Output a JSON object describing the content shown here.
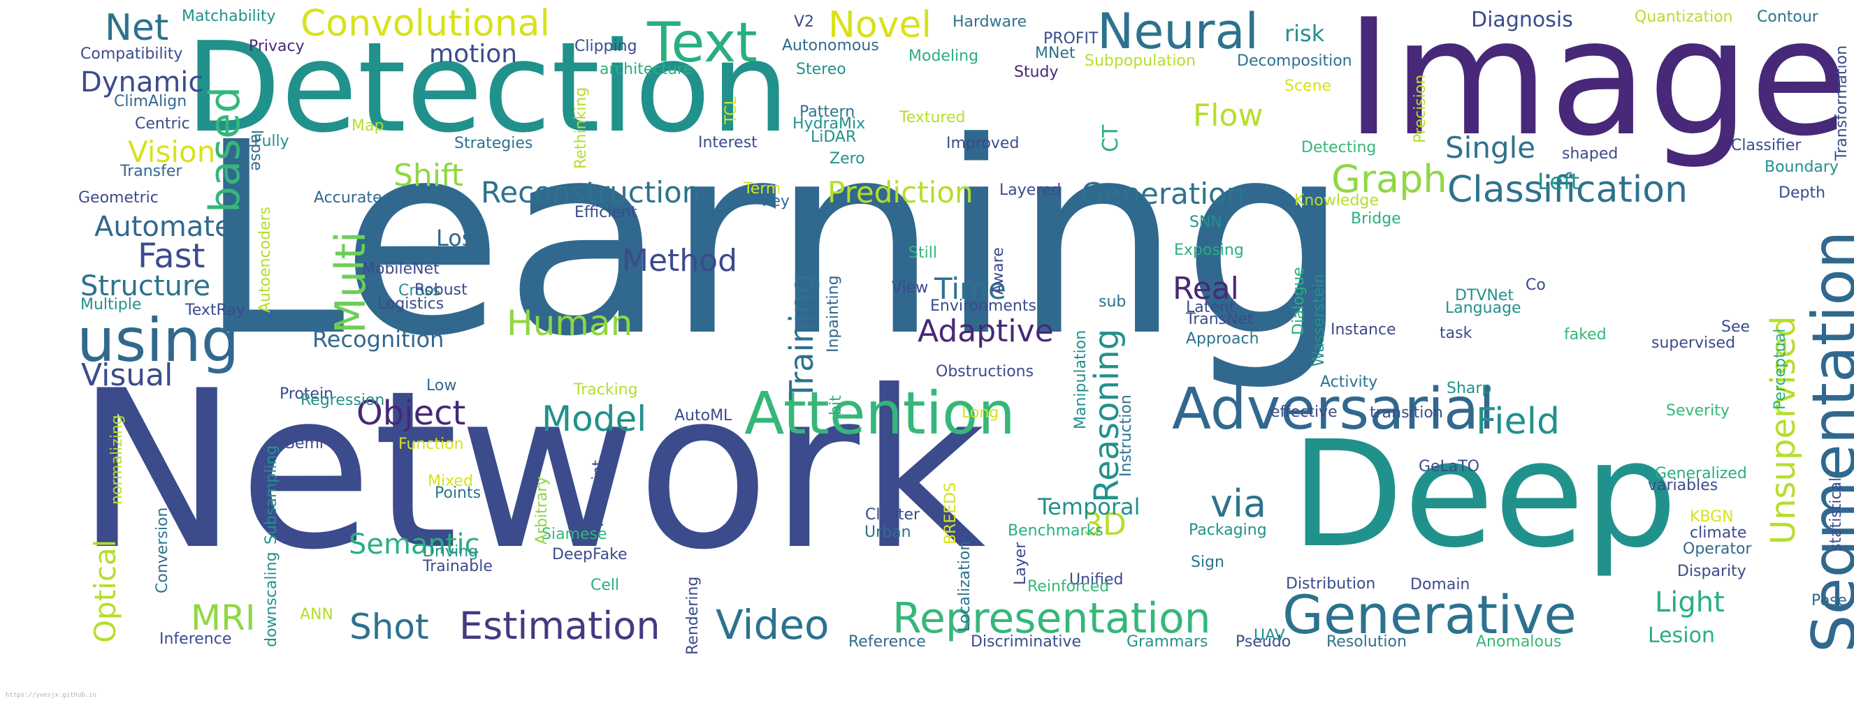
{
  "footer_url": "https://yvesjx.github.io",
  "palette": {
    "dark_purple": "#440154",
    "indigo": "#3b4b8c",
    "blue": "#31688e",
    "teal": "#21918c",
    "green": "#35b779",
    "lime": "#90d743",
    "yellow": "#d8e219",
    "gray_footer": "#b0b0b0"
  },
  "words": [
    {
      "text": "Learning",
      "color": "#31688e"
    },
    {
      "text": "Network",
      "color": "#3b4b8c"
    },
    {
      "text": "Detection",
      "color": "#21918c"
    },
    {
      "text": "Image",
      "color": "#482878"
    },
    {
      "text": "Deep",
      "color": "#21918c"
    },
    {
      "text": "Segmentation",
      "color": "#31688e"
    },
    {
      "text": "Adversarial",
      "color": "#31688e"
    },
    {
      "text": "Generative",
      "color": "#2c728e"
    },
    {
      "text": "Attention",
      "color": "#35b779"
    },
    {
      "text": "Text",
      "color": "#29af7f"
    },
    {
      "text": "Neural",
      "color": "#2c728e"
    },
    {
      "text": "Convolutional",
      "color": "#d8e219"
    },
    {
      "text": "using",
      "color": "#31688e"
    },
    {
      "text": "based",
      "color": "#35b779"
    },
    {
      "text": "Representation",
      "color": "#35b779"
    },
    {
      "text": "Classification",
      "color": "#2c728e"
    },
    {
      "text": "Multi",
      "color": "#6ece58"
    },
    {
      "text": "Video",
      "color": "#2c728e"
    },
    {
      "text": "Estimation",
      "color": "#443983"
    },
    {
      "text": "Unsupervised",
      "color": "#b5de2b"
    },
    {
      "text": "Reasoning",
      "color": "#21918c"
    },
    {
      "text": "Training",
      "color": "#2c728e"
    },
    {
      "text": "Net",
      "color": "#2c728e"
    },
    {
      "text": "Novel",
      "color": "#d8e219"
    },
    {
      "text": "Flow",
      "color": "#b5de2b"
    },
    {
      "text": "Graph",
      "color": "#90d743"
    },
    {
      "text": "Field",
      "color": "#21918c"
    },
    {
      "text": "Single",
      "color": "#2c728e"
    },
    {
      "text": "Generation",
      "color": "#2c728e"
    },
    {
      "text": "Prediction",
      "color": "#b5de2b"
    },
    {
      "text": "Reconstruction",
      "color": "#2c728e"
    },
    {
      "text": "Model",
      "color": "#21918c"
    },
    {
      "text": "Object",
      "color": "#482878"
    },
    {
      "text": "Human",
      "color": "#90d743"
    },
    {
      "text": "Adaptive",
      "color": "#482878"
    },
    {
      "text": "Method",
      "color": "#3b4b8c"
    },
    {
      "text": "Real",
      "color": "#482878"
    },
    {
      "text": "Time",
      "color": "#2c728e"
    },
    {
      "text": "Shift",
      "color": "#90d743"
    },
    {
      "text": "Semantic",
      "color": "#29af7f"
    },
    {
      "text": "Shot",
      "color": "#2c728e"
    },
    {
      "text": "MRI",
      "color": "#90d743"
    },
    {
      "text": "Optical",
      "color": "#b5de2b"
    },
    {
      "text": "Visual",
      "color": "#3b4b8c"
    },
    {
      "text": "Structure",
      "color": "#2c728e"
    },
    {
      "text": "Fast",
      "color": "#3b4b8c"
    },
    {
      "text": "Automated",
      "color": "#31688e"
    },
    {
      "text": "Vision",
      "color": "#d8e219"
    },
    {
      "text": "Dynamic",
      "color": "#3b4b8c"
    },
    {
      "text": "motion",
      "color": "#3b4b8c"
    },
    {
      "text": "Diagnosis",
      "color": "#3b4b8c"
    },
    {
      "text": "via",
      "color": "#2c728e"
    },
    {
      "text": "3D",
      "color": "#b5de2b"
    },
    {
      "text": "Temporal",
      "color": "#21918c"
    },
    {
      "text": "Light",
      "color": "#29af7f"
    },
    {
      "text": "Lesion",
      "color": "#29af7f"
    },
    {
      "text": "Left",
      "color": "#21918c"
    },
    {
      "text": "Loss",
      "color": "#31688e"
    },
    {
      "text": "Recognition",
      "color": "#31688e"
    },
    {
      "text": "risk",
      "color": "#21918c"
    },
    {
      "text": "Matchability",
      "color": "#21918c"
    },
    {
      "text": "Compatibility",
      "color": "#3b4b8c"
    },
    {
      "text": "Privacy",
      "color": "#482878"
    },
    {
      "text": "ClimAlign",
      "color": "#31688e"
    },
    {
      "text": "Centric",
      "color": "#3b4b8c"
    },
    {
      "text": "Fully",
      "color": "#21918c"
    },
    {
      "text": "Transfer",
      "color": "#31688e"
    },
    {
      "text": "Geometric",
      "color": "#3b4b8c"
    },
    {
      "text": "Accurate",
      "color": "#31688e"
    },
    {
      "text": "Map",
      "color": "#b5de2b"
    },
    {
      "text": "Strategies",
      "color": "#2c728e"
    },
    {
      "text": "lapse",
      "color": "#31688e"
    },
    {
      "text": "Rethinking",
      "color": "#b5de2b"
    },
    {
      "text": "TCL",
      "color": "#d8e219"
    },
    {
      "text": "architecture",
      "color": "#29af7f"
    },
    {
      "text": "Clipping",
      "color": "#3b4b8c"
    },
    {
      "text": "V2",
      "color": "#3b4b8c"
    },
    {
      "text": "Autonomous",
      "color": "#31688e"
    },
    {
      "text": "Stereo",
      "color": "#21918c"
    },
    {
      "text": "Pattern",
      "color": "#2c728e"
    },
    {
      "text": "HydraMix",
      "color": "#21918c"
    },
    {
      "text": "LiDAR",
      "color": "#21918c"
    },
    {
      "text": "Zero",
      "color": "#21918c"
    },
    {
      "text": "Interest",
      "color": "#3b4b8c"
    },
    {
      "text": "Efficient",
      "color": "#3b4b8c"
    },
    {
      "text": "Term",
      "color": "#d8e219"
    },
    {
      "text": "Key",
      "color": "#31688e"
    },
    {
      "text": "Hardware",
      "color": "#2c728e"
    },
    {
      "text": "Modeling",
      "color": "#29af7f"
    },
    {
      "text": "PROFIT",
      "color": "#3b4b8c"
    },
    {
      "text": "MNet",
      "color": "#2c728e"
    },
    {
      "text": "Study",
      "color": "#482878"
    },
    {
      "text": "Subpopulation",
      "color": "#b5de2b"
    },
    {
      "text": "Decomposition",
      "color": "#2c728e"
    },
    {
      "text": "Scene",
      "color": "#d8e219"
    },
    {
      "text": "Textured",
      "color": "#b5de2b"
    },
    {
      "text": "Improved",
      "color": "#3b4b8c"
    },
    {
      "text": "CT",
      "color": "#29af7f"
    },
    {
      "text": "Layered",
      "color": "#3b4b8c"
    },
    {
      "text": "Detecting",
      "color": "#35b779"
    },
    {
      "text": "Knowledge",
      "color": "#b5de2b"
    },
    {
      "text": "Bridge",
      "color": "#29af7f"
    },
    {
      "text": "Precision",
      "color": "#b5de2b"
    },
    {
      "text": "shaped",
      "color": "#3b4b8c"
    },
    {
      "text": "Quantization",
      "color": "#b5de2b"
    },
    {
      "text": "Contour",
      "color": "#2c728e"
    },
    {
      "text": "Transformation",
      "color": "#3b4b8c"
    },
    {
      "text": "Classifier",
      "color": "#3b4b8c"
    },
    {
      "text": "Boundary",
      "color": "#21918c"
    },
    {
      "text": "Depth",
      "color": "#3b4b8c"
    },
    {
      "text": "Autoencoders",
      "color": "#b5de2b"
    },
    {
      "text": "MobileNet",
      "color": "#3b4b8c"
    },
    {
      "text": "Cross",
      "color": "#21918c"
    },
    {
      "text": "Robust",
      "color": "#3b4b8c"
    },
    {
      "text": "Logistics",
      "color": "#3b4b8c"
    },
    {
      "text": "Low",
      "color": "#31688e"
    },
    {
      "text": "Multiple",
      "color": "#21918c"
    },
    {
      "text": "TextRay",
      "color": "#3b4b8c"
    },
    {
      "text": "Still",
      "color": "#35b779"
    },
    {
      "text": "Aware",
      "color": "#3b4b8c"
    },
    {
      "text": "View",
      "color": "#3b4b8c"
    },
    {
      "text": "Environments",
      "color": "#3b4b8c"
    },
    {
      "text": "Inpainting",
      "color": "#31688e"
    },
    {
      "text": "bit",
      "color": "#29af7f"
    },
    {
      "text": "Obstructions",
      "color": "#3b4b8c"
    },
    {
      "text": "SNN",
      "color": "#21918c"
    },
    {
      "text": "Exposing",
      "color": "#29af7f"
    },
    {
      "text": "sub",
      "color": "#2c728e"
    },
    {
      "text": "Latent",
      "color": "#3b4b8c"
    },
    {
      "text": "TransNet",
      "color": "#3b4b8c"
    },
    {
      "text": "Approach",
      "color": "#2c728e"
    },
    {
      "text": "Wasserstein",
      "color": "#21918c"
    },
    {
      "text": "Dialogue",
      "color": "#29af7f"
    },
    {
      "text": "Instance",
      "color": "#3b4b8c"
    },
    {
      "text": "Activity",
      "color": "#2c728e"
    },
    {
      "text": "DTVNet",
      "color": "#21918c"
    },
    {
      "text": "Co",
      "color": "#3b4b8c"
    },
    {
      "text": "Language",
      "color": "#21918c"
    },
    {
      "text": "task",
      "color": "#3b4b8c"
    },
    {
      "text": "Sharp",
      "color": "#21918c"
    },
    {
      "text": "faked",
      "color": "#35b779"
    },
    {
      "text": "See",
      "color": "#3b4b8c"
    },
    {
      "text": "supervised",
      "color": "#3b4b8c"
    },
    {
      "text": "Perceptual",
      "color": "#29af7f"
    },
    {
      "text": "statistical",
      "color": "#3b4b8c"
    },
    {
      "text": "Severity",
      "color": "#35b779"
    },
    {
      "text": "Generalized",
      "color": "#29af7f"
    },
    {
      "text": "variables",
      "color": "#3b4b8c"
    },
    {
      "text": "KBGN",
      "color": "#d8e219"
    },
    {
      "text": "climate",
      "color": "#3b4b8c"
    },
    {
      "text": "Operator",
      "color": "#31688e"
    },
    {
      "text": "Disparity",
      "color": "#3b4b8c"
    },
    {
      "text": "Pose",
      "color": "#31688e"
    },
    {
      "text": "Anomalous",
      "color": "#35b779"
    },
    {
      "text": "Resolution",
      "color": "#2c728e"
    },
    {
      "text": "Pseudo",
      "color": "#3b4b8c"
    },
    {
      "text": "Grammars",
      "color": "#21918c"
    },
    {
      "text": "Discriminative",
      "color": "#3b4b8c"
    },
    {
      "text": "Reference",
      "color": "#31688e"
    },
    {
      "text": "Inference",
      "color": "#3b4b8c"
    },
    {
      "text": "downscaling",
      "color": "#21918c"
    },
    {
      "text": "Subsampling",
      "color": "#21918c"
    },
    {
      "text": "Conversion",
      "color": "#2c728e"
    },
    {
      "text": "normalizing",
      "color": "#b5de2b"
    },
    {
      "text": "ANN",
      "color": "#b5de2b"
    },
    {
      "text": "Protein",
      "color": "#3b4b8c"
    },
    {
      "text": "Semi",
      "color": "#3b4b8c"
    },
    {
      "text": "Regression",
      "color": "#21918c"
    },
    {
      "text": "Function",
      "color": "#d8e219"
    },
    {
      "text": "Mixed",
      "color": "#d8e219"
    },
    {
      "text": "Points",
      "color": "#2c728e"
    },
    {
      "text": "Driving",
      "color": "#21918c"
    },
    {
      "text": "Trainable",
      "color": "#3b4b8c"
    },
    {
      "text": "Cell",
      "color": "#29af7f"
    },
    {
      "text": "DeepFake",
      "color": "#3b4b8c"
    },
    {
      "text": "Siamese",
      "color": "#35b779"
    },
    {
      "text": "Arbitrary",
      "color": "#90d743"
    },
    {
      "text": "Keypoint",
      "color": "#3b4b8c"
    },
    {
      "text": "Rendering",
      "color": "#3b4b8c"
    },
    {
      "text": "Tracking",
      "color": "#b5de2b"
    },
    {
      "text": "AutoML",
      "color": "#3b4b8c"
    },
    {
      "text": "Cluster",
      "color": "#3b4b8c"
    },
    {
      "text": "Urban",
      "color": "#2c728e"
    },
    {
      "text": "BREEDS",
      "color": "#d8e219"
    },
    {
      "text": "Localization",
      "color": "#2c728e"
    },
    {
      "text": "Long",
      "color": "#d8e219"
    },
    {
      "text": "Benchmarks",
      "color": "#29af7f"
    },
    {
      "text": "Layer",
      "color": "#3b4b8c"
    },
    {
      "text": "Unified",
      "color": "#3b4b8c"
    },
    {
      "text": "Reinforced",
      "color": "#35b779"
    },
    {
      "text": "Manipulation",
      "color": "#21918c"
    },
    {
      "text": "Instruction",
      "color": "#2c728e"
    },
    {
      "text": "Packaging",
      "color": "#21918c"
    },
    {
      "text": "Sign",
      "color": "#2c728e"
    },
    {
      "text": "UAV",
      "color": "#21918c"
    },
    {
      "text": "Distribution",
      "color": "#3b4b8c"
    },
    {
      "text": "Domain",
      "color": "#3b4b8c"
    },
    {
      "text": "GeLaTO",
      "color": "#3b4b8c"
    },
    {
      "text": "effective",
      "color": "#3b4b8c"
    },
    {
      "text": "transition",
      "color": "#3b4b8c"
    }
  ]
}
